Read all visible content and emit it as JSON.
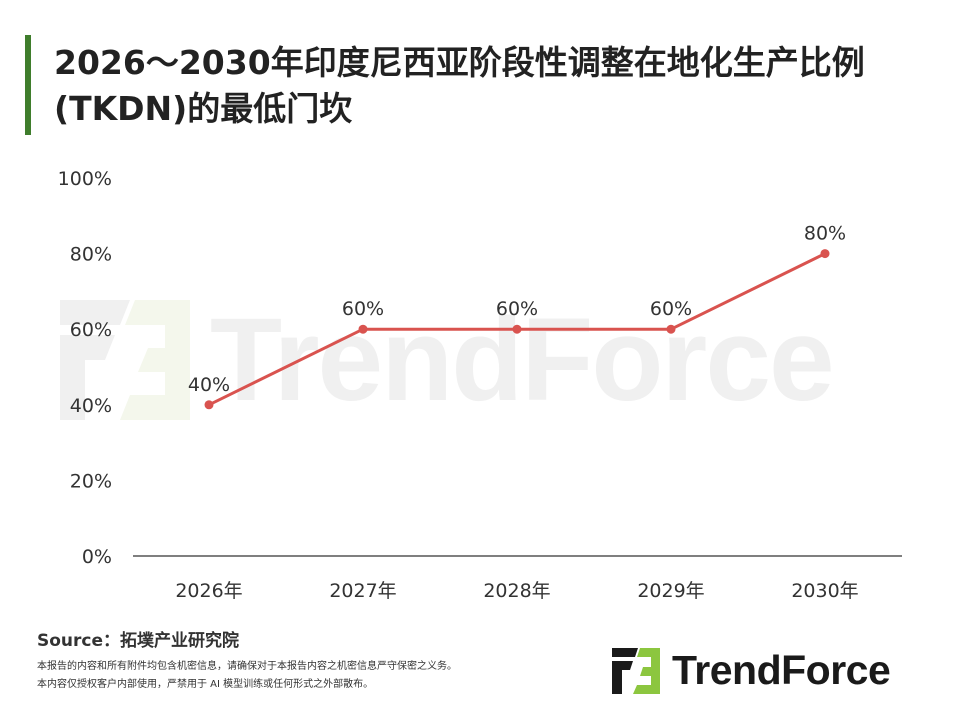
{
  "header": {
    "title": "2026～2030年印度尼西亚阶段性调整在地化生产比例(TKDN)的最低门坎"
  },
  "watermark": {
    "text": "TrendForce"
  },
  "chart_data": {
    "type": "line",
    "categories": [
      "2026年",
      "2027年",
      "2028年",
      "2029年",
      "2030年"
    ],
    "values": [
      40,
      60,
      60,
      60,
      80
    ],
    "data_labels": [
      "40%",
      "60%",
      "60%",
      "60%",
      "80%"
    ],
    "y_ticks": [
      0,
      20,
      40,
      60,
      80,
      100
    ],
    "y_tick_labels": [
      "0%",
      "20%",
      "40%",
      "60%",
      "80%",
      "100%"
    ],
    "ylim": [
      0,
      100
    ],
    "grid": false,
    "line_color": "#d9534f",
    "marker_color": "#d9534f"
  },
  "footer": {
    "source": "Source：拓墣产业研究院",
    "notes": [
      "本报告的内容和所有附件均包含机密信息，请确保对于本报告内容之机密信息严守保密之义务。",
      "本内容仅授权客户内部使用，严禁用于 AI 模型训练或任何形式之外部散布。"
    ],
    "brand_name": "TrendForce"
  },
  "colors": {
    "accent": "#3f7d2c",
    "brand_green": "#8cc63f",
    "brand_dark": "#1a1a1a"
  }
}
